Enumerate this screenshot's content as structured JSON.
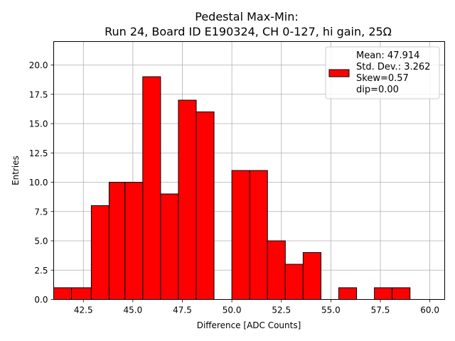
{
  "chart_data": {
    "type": "bar",
    "title_line1": "Pedestal Max-Min:",
    "title_line2": "Run 24, Board ID E190324, CH 0-127, hi gain, 25Ω",
    "xlabel": "Difference [ADC Counts]",
    "ylabel": "Entries",
    "xlim": [
      41.0,
      60.75
    ],
    "ylim": [
      0,
      22
    ],
    "xticks": [
      42.5,
      45.0,
      47.5,
      50.0,
      52.5,
      55.0,
      57.5,
      60.0
    ],
    "xtick_labels": [
      "42.5",
      "45.0",
      "47.5",
      "50.0",
      "52.5",
      "55.0",
      "57.5",
      "60.0"
    ],
    "yticks": [
      0.0,
      2.5,
      5.0,
      7.5,
      10.0,
      12.5,
      15.0,
      17.5,
      20.0
    ],
    "ytick_labels": [
      "0.0",
      "2.5",
      "5.0",
      "7.5",
      "10.0",
      "12.5",
      "15.0",
      "17.5",
      "20.0"
    ],
    "grid": true,
    "bar_color": "#ff0000",
    "edge_color": "#000000",
    "bins": [
      {
        "x0": 41.0,
        "x1": 41.9,
        "count": 1
      },
      {
        "x0": 41.9,
        "x1": 42.9,
        "count": 1
      },
      {
        "x0": 42.9,
        "x1": 43.8,
        "count": 8
      },
      {
        "x0": 43.8,
        "x1": 44.6,
        "count": 10
      },
      {
        "x0": 44.6,
        "x1": 45.5,
        "count": 10
      },
      {
        "x0": 45.5,
        "x1": 46.4,
        "count": 19
      },
      {
        "x0": 46.4,
        "x1": 47.3,
        "count": 9
      },
      {
        "x0": 47.3,
        "x1": 48.2,
        "count": 17
      },
      {
        "x0": 48.2,
        "x1": 49.1,
        "count": 16
      },
      {
        "x0": 50.0,
        "x1": 50.9,
        "count": 11
      },
      {
        "x0": 50.9,
        "x1": 51.8,
        "count": 11
      },
      {
        "x0": 51.8,
        "x1": 52.7,
        "count": 5
      },
      {
        "x0": 52.7,
        "x1": 53.6,
        "count": 3
      },
      {
        "x0": 53.6,
        "x1": 54.5,
        "count": 4
      },
      {
        "x0": 55.4,
        "x1": 56.3,
        "count": 1
      },
      {
        "x0": 57.2,
        "x1": 58.1,
        "count": 1
      },
      {
        "x0": 58.1,
        "x1": 59.0,
        "count": 1
      }
    ],
    "legend": {
      "position": "top-right",
      "lines": [
        "Mean: 47.914",
        "Std. Dev.: 3.262",
        "Skew=0.57",
        "dip=0.00"
      ]
    }
  }
}
